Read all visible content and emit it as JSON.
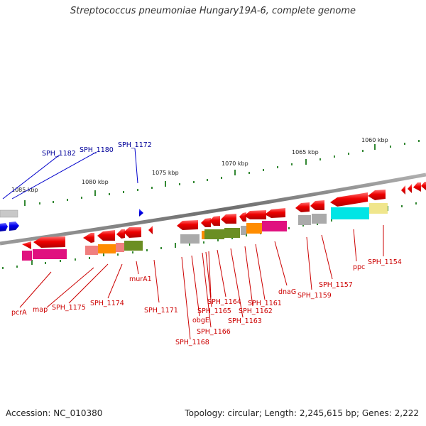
{
  "title": "Streptococcus pneumoniae Hungary19A-6, complete genome",
  "footer": {
    "accession": "Accession: NC_010380",
    "summary": "Topology: circular; Length: 2,245,615 bp; Genes: 2,222"
  },
  "scale_labels": [
    "1085 kbp",
    "1080 kbp",
    "1075 kbp",
    "1070 kbp",
    "1065 kbp",
    "1060 kbp"
  ],
  "blue_labels": [
    "SPH_1182",
    "SPH_1180",
    "SPH_1172"
  ],
  "red_labels": [
    "pcrA",
    "map",
    "SPH_1175",
    "SPH_1174",
    "murA1",
    "SPH_1171",
    "SPH_1168",
    "obgE",
    "SPH_1166",
    "SPH_1165",
    "SPH_1164",
    "SPH_1163",
    "SPH_1162",
    "SPH_1161",
    "dnaG",
    "SPH_1159",
    "SPH_1157",
    "ppc",
    "SPH_1154"
  ],
  "colors": {
    "backbone": "#7a7a7a",
    "forward_gene": "#0000ee",
    "reverse_gene": "#ee0000",
    "tick": "#338833",
    "cog_pink": "#e0117f",
    "cog_olive": "#6b8e23",
    "cog_orange": "#ff8c00",
    "cog_gray": "#aaaaaa",
    "cog_cyan": "#00e5e5",
    "cog_khaki": "#f0e68c",
    "cog_salmon": "#f08080"
  }
}
